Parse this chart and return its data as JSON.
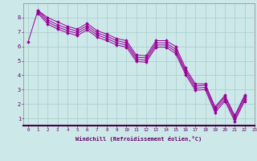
{
  "xlabel": "Windchill (Refroidissement éolien,°C)",
  "background_color": "#cce8e8",
  "grid_color": "#aacccc",
  "line_color": "#990099",
  "spine_color": "#888888",
  "xlim": [
    -0.5,
    23
  ],
  "ylim": [
    0.5,
    9.0
  ],
  "xticks": [
    0,
    1,
    2,
    3,
    4,
    5,
    6,
    7,
    8,
    9,
    10,
    11,
    12,
    13,
    14,
    15,
    16,
    17,
    18,
    19,
    20,
    21,
    22,
    23
  ],
  "yticks": [
    1,
    2,
    3,
    4,
    5,
    6,
    7,
    8
  ],
  "curves": {
    "line1": {
      "x": [
        0,
        1,
        2,
        3,
        4,
        5,
        6,
        7,
        8,
        9,
        10,
        11,
        12,
        13,
        14,
        15,
        16,
        17,
        18,
        19,
        20,
        21,
        22
      ],
      "y": [
        6.3,
        8.5,
        8.0,
        7.7,
        7.4,
        7.2,
        7.6,
        7.1,
        6.85,
        6.55,
        6.4,
        5.4,
        5.35,
        6.4,
        6.4,
        6.0,
        4.5,
        3.4,
        3.4,
        1.8,
        2.6,
        1.2,
        2.6
      ]
    },
    "line2": {
      "x": [
        1,
        2,
        3,
        4,
        5,
        6,
        7,
        8,
        9,
        10,
        11,
        12,
        13,
        14,
        15,
        16,
        17,
        18,
        19,
        20,
        21,
        22
      ],
      "y": [
        8.5,
        7.85,
        7.5,
        7.25,
        7.05,
        7.45,
        6.95,
        6.7,
        6.4,
        6.25,
        5.25,
        5.2,
        6.25,
        6.25,
        5.8,
        4.35,
        3.25,
        3.3,
        1.7,
        2.5,
        1.1,
        2.5
      ]
    },
    "line3": {
      "x": [
        1,
        2,
        3,
        4,
        5,
        6,
        7,
        8,
        9,
        10,
        11,
        12,
        13,
        14,
        15,
        16,
        17,
        18,
        19,
        20,
        21,
        22
      ],
      "y": [
        8.4,
        7.7,
        7.35,
        7.1,
        6.9,
        7.3,
        6.8,
        6.55,
        6.25,
        6.1,
        5.1,
        5.05,
        6.1,
        6.1,
        5.65,
        4.2,
        3.1,
        3.15,
        1.55,
        2.35,
        0.95,
        2.35
      ]
    },
    "line4": {
      "x": [
        1,
        2,
        3,
        4,
        5,
        6,
        7,
        8,
        9,
        10,
        11,
        12,
        13,
        14,
        15,
        16,
        17,
        18,
        19,
        20,
        21,
        22
      ],
      "y": [
        8.3,
        7.55,
        7.2,
        6.95,
        6.75,
        7.15,
        6.65,
        6.4,
        6.1,
        5.95,
        4.95,
        4.9,
        5.95,
        5.95,
        5.5,
        4.05,
        2.95,
        3.0,
        1.4,
        2.2,
        0.8,
        2.2
      ]
    }
  }
}
